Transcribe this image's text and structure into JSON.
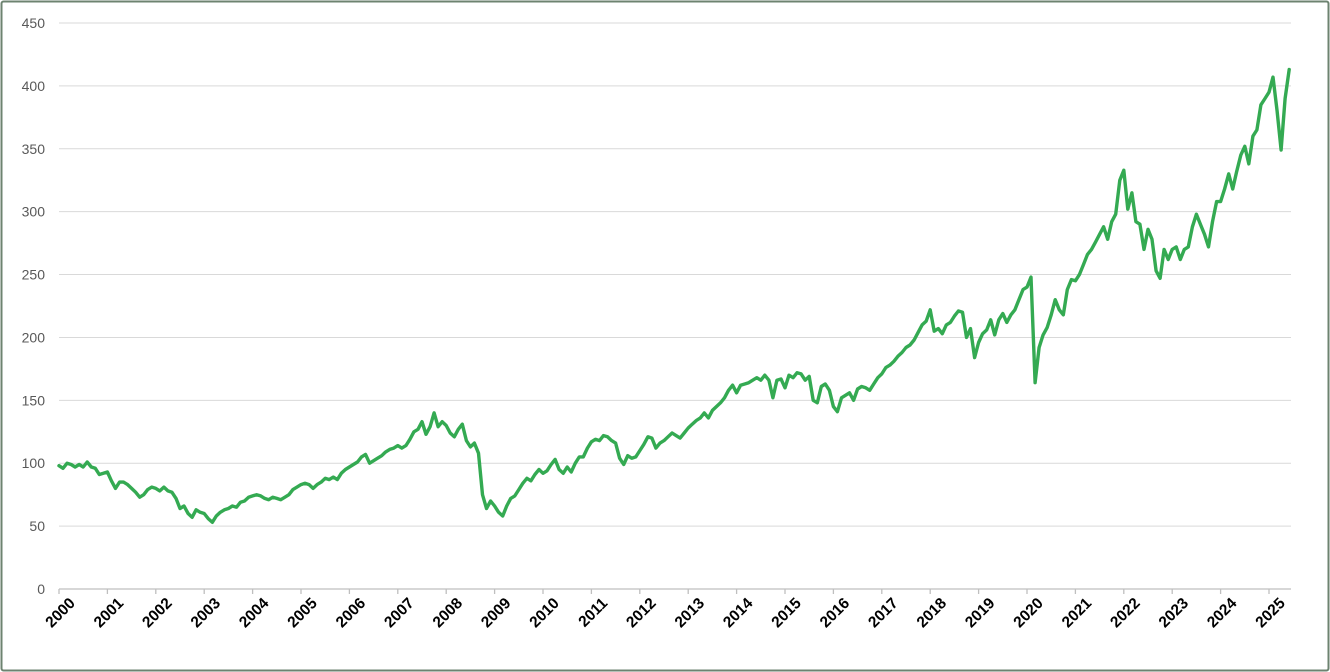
{
  "window": {
    "background_color": "#ffffff",
    "frame_border_color": "#6d8370"
  },
  "chart_data": {
    "type": "line",
    "title": "",
    "xlabel": "",
    "ylabel": "",
    "legend": "none",
    "grid": "horizontal",
    "gridline_color": "#d9d9d9",
    "axis_color": "#bfbfbf",
    "y_tick_label_color": "#595959",
    "x_tick_label_color": "#000000",
    "ylim": [
      0,
      450
    ],
    "y_ticks": [
      0,
      50,
      100,
      150,
      200,
      250,
      300,
      350,
      400,
      450
    ],
    "x_tick_labels": [
      "2000",
      "2001",
      "2002",
      "2003",
      "2004",
      "2005",
      "2006",
      "2007",
      "2008",
      "2009",
      "2010",
      "2011",
      "2012",
      "2013",
      "2014",
      "2015",
      "2016",
      "2017",
      "2018",
      "2019",
      "2020",
      "2021",
      "2022",
      "2023",
      "2024",
      "2025"
    ],
    "x_start_year": 2000,
    "points_per_year": 12,
    "series": [
      {
        "name": "index-value",
        "color": "#34aa52",
        "values": [
          98,
          96,
          100,
          99,
          97,
          99,
          97,
          101,
          97,
          96,
          91,
          92,
          93,
          86,
          80,
          85,
          85,
          83,
          80,
          77,
          73,
          75,
          79,
          81,
          80,
          78,
          81,
          78,
          77,
          72,
          64,
          66,
          60,
          57,
          63,
          61,
          60,
          56,
          53,
          58,
          61,
          63,
          64,
          66,
          65,
          69,
          70,
          73,
          74,
          75,
          74,
          72,
          71,
          73,
          72,
          71,
          73,
          75,
          79,
          81,
          83,
          84,
          83,
          80,
          83,
          85,
          88,
          87,
          89,
          87,
          92,
          95,
          97,
          99,
          101,
          105,
          107,
          100,
          102,
          104,
          106,
          109,
          111,
          112,
          114,
          112,
          114,
          119,
          125,
          127,
          133,
          123,
          129,
          140,
          129,
          133,
          130,
          124,
          121,
          127,
          131,
          118,
          113,
          116,
          108,
          75,
          64,
          70,
          66,
          61,
          58,
          66,
          72,
          74,
          79,
          84,
          88,
          86,
          91,
          95,
          92,
          94,
          99,
          103,
          95,
          92,
          97,
          93,
          100,
          105,
          105,
          112,
          117,
          119,
          118,
          122,
          121,
          118,
          116,
          104,
          99,
          106,
          104,
          105,
          110,
          115,
          121,
          120,
          112,
          116,
          118,
          121,
          124,
          122,
          120,
          124,
          128,
          131,
          134,
          136,
          140,
          136,
          142,
          145,
          148,
          152,
          158,
          162,
          156,
          162,
          163,
          164,
          166,
          168,
          166,
          170,
          166,
          152,
          166,
          167,
          160,
          170,
          168,
          172,
          171,
          166,
          169,
          150,
          148,
          161,
          163,
          158,
          145,
          141,
          152,
          154,
          156,
          150,
          159,
          161,
          160,
          158,
          163,
          168,
          171,
          176,
          178,
          181,
          185,
          188,
          192,
          194,
          198,
          204,
          210,
          213,
          222,
          205,
          207,
          203,
          210,
          212,
          217,
          221,
          220,
          200,
          207,
          184,
          196,
          203,
          206,
          214,
          202,
          214,
          219,
          212,
          218,
          222,
          230,
          238,
          240,
          248,
          164,
          192,
          202,
          208,
          218,
          230,
          222,
          218,
          238,
          246,
          245,
          250,
          258,
          266,
          270,
          276,
          282,
          288,
          278,
          292,
          298,
          325,
          333,
          302,
          315,
          292,
          290,
          270,
          286,
          278,
          253,
          247,
          270,
          262,
          270,
          272,
          262,
          270,
          272,
          288,
          298,
          290,
          282,
          272,
          292,
          308,
          308,
          318,
          330,
          318,
          332,
          345,
          352,
          338,
          360,
          365,
          385,
          390,
          395,
          407,
          380,
          349,
          390,
          413
        ]
      }
    ]
  }
}
